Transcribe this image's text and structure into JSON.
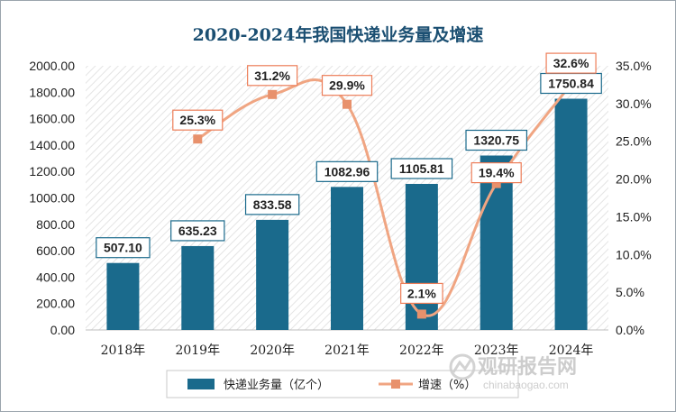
{
  "chart_data": {
    "type": "bar",
    "title": "2020-2024年我国快递业务量及增速",
    "categories": [
      "2018年",
      "2019年",
      "2020年",
      "2021年",
      "2022年",
      "2023年",
      "2024年"
    ],
    "series": [
      {
        "name": "快递业务量（亿个）",
        "type": "bar",
        "axis": "left",
        "values": [
          507.1,
          635.23,
          833.58,
          1082.96,
          1105.81,
          1320.75,
          1750.84
        ],
        "labels": [
          "507.10",
          "635.23",
          "833.58",
          "1082.96",
          "1105.81",
          "1320.75",
          "1750.84"
        ]
      },
      {
        "name": "增速（%）",
        "type": "line",
        "axis": "right",
        "values": [
          null,
          25.3,
          31.2,
          29.9,
          2.1,
          19.4,
          32.6
        ],
        "labels": [
          "",
          "25.3%",
          "31.2%",
          "29.9%",
          "2.1%",
          "19.4%",
          "32.6%"
        ]
      }
    ],
    "y_left": {
      "range": [
        0,
        2000
      ],
      "ticks": [
        "0.00",
        "200.00",
        "400.00",
        "600.00",
        "800.00",
        "1000.00",
        "1200.00",
        "1400.00",
        "1600.00",
        "1800.00",
        "2000.00"
      ]
    },
    "y_right": {
      "range": [
        0,
        35
      ],
      "ticks": [
        "0.0%",
        "5.0%",
        "10.0%",
        "15.0%",
        "20.0%",
        "25.0%",
        "30.0%",
        "35.0%"
      ]
    },
    "legend_position": "bottom",
    "colors": {
      "bar": "#1a6a8c",
      "line": "#f0a582",
      "marker": "#e8916c",
      "label_border": "#1a6a8c",
      "rate_label_border": "#ed7d58"
    }
  },
  "watermark": {
    "text": "观研报告网",
    "url": "chinabaogao.com"
  }
}
